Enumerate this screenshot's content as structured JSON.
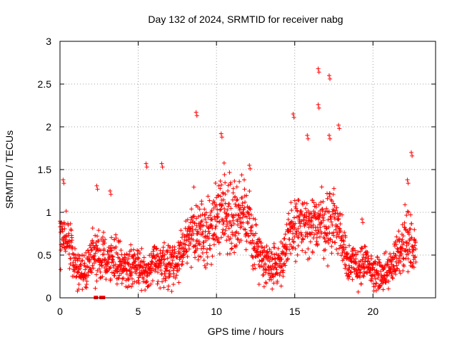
{
  "chart_data": {
    "type": "scatter",
    "title": "Day 132 of 2024, SRMTID for receiver nabg",
    "xlabel": "GPS time / hours",
    "ylabel": "SRMTID / TECUs",
    "xlim": [
      0,
      24
    ],
    "ylim": [
      0,
      3
    ],
    "xticks": [
      0,
      5,
      10,
      15,
      20
    ],
    "yticks": [
      0,
      0.5,
      1,
      1.5,
      2,
      2.5,
      3
    ],
    "xtick_labels": [
      "0",
      "5",
      "10",
      "15",
      "20"
    ],
    "ytick_labels": [
      "0",
      "0.5",
      "1",
      "1.5",
      "2",
      "2.5",
      "3"
    ],
    "grid": true,
    "marker": "+",
    "color": "#ff0000",
    "series": [
      {
        "name": "SRMTID",
        "trend": [
          [
            0.0,
            0.8
          ],
          [
            0.5,
            0.7
          ],
          [
            1.0,
            0.35
          ],
          [
            1.5,
            0.3
          ],
          [
            2.0,
            0.45
          ],
          [
            2.5,
            0.5
          ],
          [
            3.0,
            0.5
          ],
          [
            3.5,
            0.45
          ],
          [
            4.0,
            0.35
          ],
          [
            4.5,
            0.35
          ],
          [
            5.0,
            0.4
          ],
          [
            5.5,
            0.25
          ],
          [
            6.0,
            0.4
          ],
          [
            6.5,
            0.35
          ],
          [
            7.0,
            0.4
          ],
          [
            7.5,
            0.45
          ],
          [
            8.0,
            0.6
          ],
          [
            8.5,
            0.8
          ],
          [
            9.0,
            0.75
          ],
          [
            9.5,
            0.8
          ],
          [
            10.0,
            0.95
          ],
          [
            10.5,
            1.05
          ],
          [
            11.0,
            0.95
          ],
          [
            11.5,
            0.95
          ],
          [
            12.0,
            0.9
          ],
          [
            12.5,
            0.6
          ],
          [
            13.0,
            0.45
          ],
          [
            13.5,
            0.4
          ],
          [
            14.0,
            0.4
          ],
          [
            14.5,
            0.6
          ],
          [
            15.0,
            0.85
          ],
          [
            15.5,
            0.85
          ],
          [
            16.0,
            0.75
          ],
          [
            16.5,
            0.95
          ],
          [
            17.0,
            0.85
          ],
          [
            17.5,
            0.95
          ],
          [
            18.0,
            0.7
          ],
          [
            18.5,
            0.4
          ],
          [
            19.0,
            0.35
          ],
          [
            19.5,
            0.4
          ],
          [
            20.0,
            0.3
          ],
          [
            20.5,
            0.25
          ],
          [
            21.0,
            0.3
          ],
          [
            21.5,
            0.5
          ],
          [
            22.0,
            0.7
          ],
          [
            22.5,
            0.6
          ],
          [
            22.75,
            0.5
          ]
        ],
        "peaks": [
          [
            0.2,
            1.38
          ],
          [
            2.35,
            1.31
          ],
          [
            3.2,
            1.25
          ],
          [
            5.5,
            1.57
          ],
          [
            6.5,
            1.57
          ],
          [
            8.7,
            2.17
          ],
          [
            10.3,
            1.92
          ],
          [
            12.1,
            1.55
          ],
          [
            14.9,
            2.15
          ],
          [
            15.8,
            1.9
          ],
          [
            16.5,
            2.68
          ],
          [
            16.5,
            2.26
          ],
          [
            17.2,
            2.6
          ],
          [
            17.2,
            1.9
          ],
          [
            17.8,
            2.02
          ],
          [
            22.45,
            1.7
          ],
          [
            22.2,
            1.38
          ],
          [
            19.3,
            0.92
          ]
        ],
        "zero_points": [
          [
            2.3,
            0.0
          ],
          [
            2.65,
            0.0
          ],
          [
            2.75,
            0.0
          ]
        ]
      }
    ]
  }
}
